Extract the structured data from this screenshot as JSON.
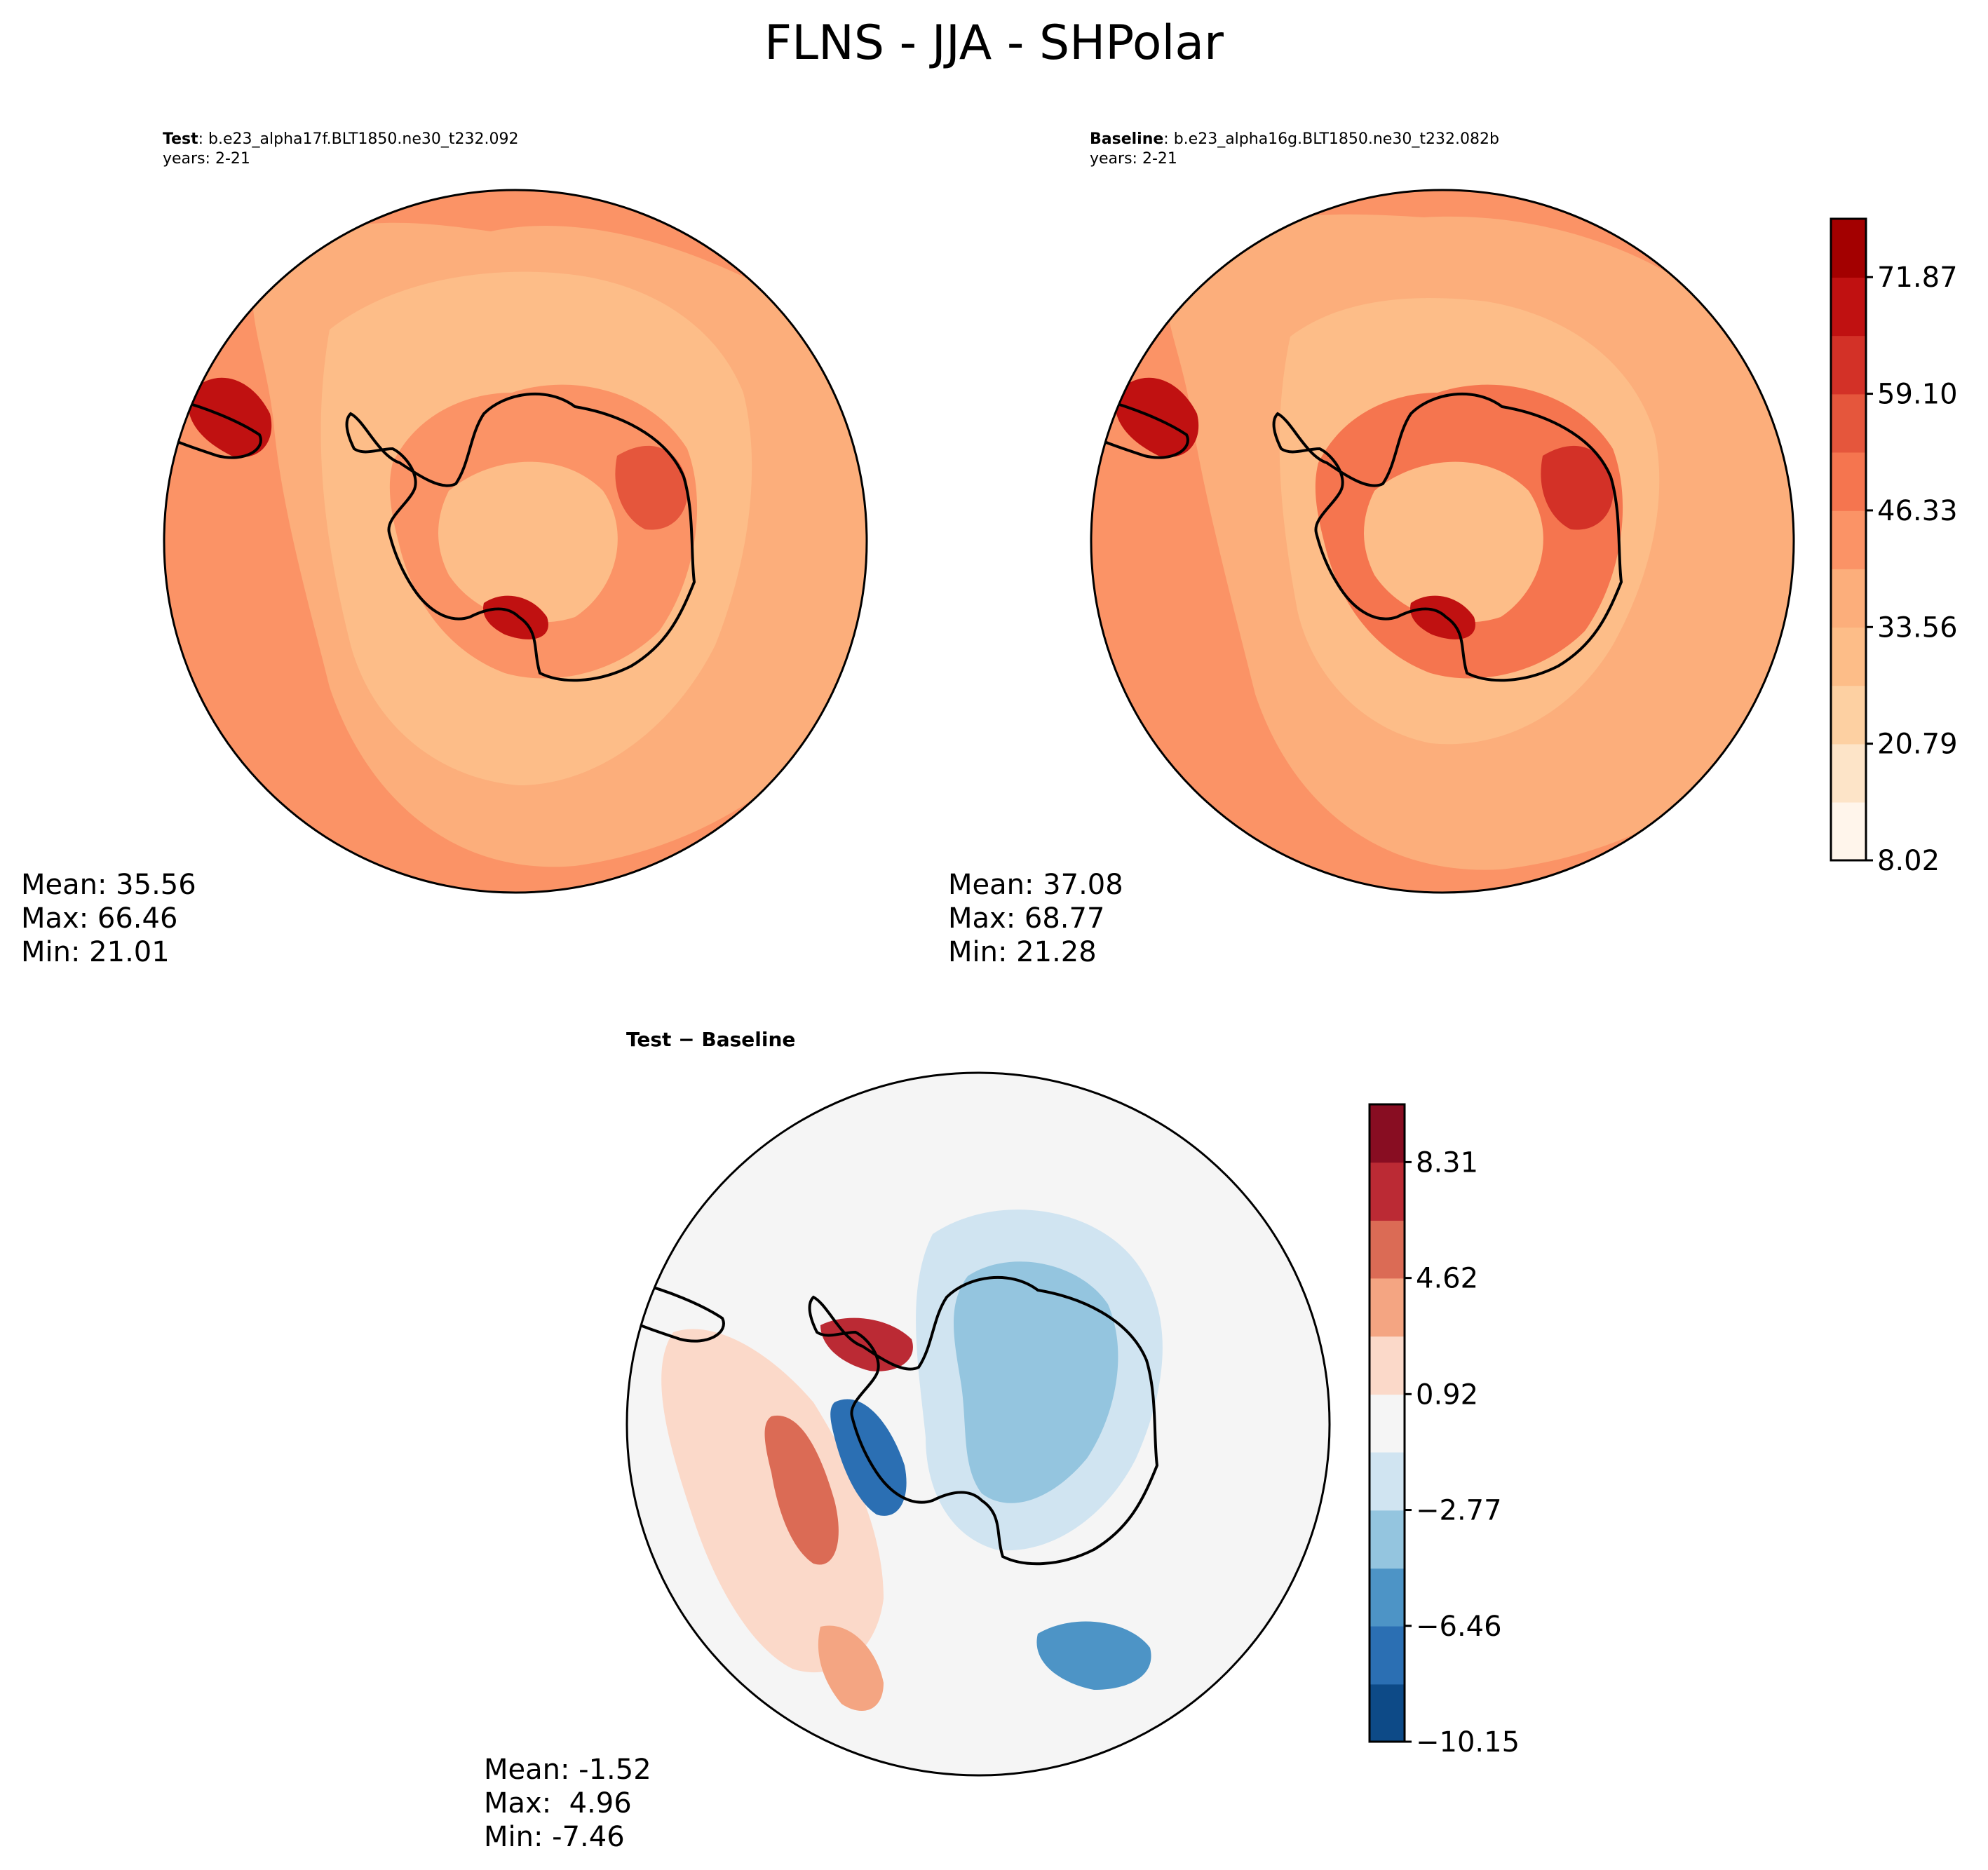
{
  "figure": {
    "title": "FLNS - JJA - SHPolar"
  },
  "panels": [
    {
      "id": "test",
      "label": "Test",
      "case": ": b.e23_alpha17f.BLT1850.ne30_t232.092",
      "years": "years: 2-21",
      "stats": {
        "mean": "Mean: 35.56",
        "max": "Max: 66.46",
        "min": "Min: 21.01"
      }
    },
    {
      "id": "baseline",
      "label": "Baseline",
      "case": ": b.e23_alpha16g.BLT1850.ne30_t232.082b",
      "years": "years: 2-21",
      "stats": {
        "mean": "Mean: 37.08",
        "max": "Max: 68.77",
        "min": "Min: 21.28"
      }
    },
    {
      "id": "diff",
      "label": "Test − Baseline",
      "stats": {
        "mean": "Mean: -1.52",
        "max": "Max:  4.96",
        "min": "Min: -7.46"
      }
    }
  ],
  "chart_data": [
    {
      "type": "heatmap",
      "title": "Test",
      "projection": "south polar stereographic",
      "colormap": "OrRd",
      "colorbar": {
        "ticks": [
          8.02,
          20.79,
          33.56,
          46.33,
          59.1,
          71.87
        ],
        "tick_labels": [
          "8.02",
          "20.79",
          "33.56",
          "46.33",
          "59.10",
          "71.87"
        ],
        "levels": [
          8.02,
          14.41,
          20.79,
          27.18,
          33.56,
          39.95,
          46.33,
          52.72,
          59.1,
          65.49,
          71.87,
          78.26
        ],
        "colors": [
          "#fff5eb",
          "#fde4c8",
          "#fdd0a2",
          "#fdbd88",
          "#fcae7b",
          "#fb9366",
          "#f5754f",
          "#e5563c",
          "#d33127",
          "#c01111",
          "#a30000",
          "#800000"
        ]
      },
      "mean": 35.56,
      "max": 66.46,
      "min": 21.01
    },
    {
      "type": "heatmap",
      "title": "Baseline",
      "projection": "south polar stereographic",
      "colormap": "OrRd",
      "colorbar": "shared with Test",
      "mean": 37.08,
      "max": 68.77,
      "min": 21.28
    },
    {
      "type": "heatmap",
      "title": "Test − Baseline",
      "projection": "south polar stereographic",
      "colormap": "RdBu_r",
      "colorbar": {
        "ticks": [
          -10.15,
          -6.46,
          -2.77,
          0.92,
          4.62,
          8.31
        ],
        "tick_labels": [
          "−10.15",
          "−6.46",
          "−2.77",
          "0.92",
          "4.62",
          "8.31"
        ],
        "levels": [
          -10.15,
          -8.31,
          -6.46,
          -4.62,
          -2.77,
          -0.92,
          0.92,
          2.77,
          4.62,
          6.46,
          8.31,
          10.15
        ],
        "colors": [
          "#0d4a87",
          "#2b6fb3",
          "#4d94c6",
          "#94c5df",
          "#d0e4f1",
          "#f5f5f5",
          "#fbd9c9",
          "#f4a582",
          "#db6b55",
          "#bb2a34",
          "#880d22"
        ]
      },
      "mean": -1.52,
      "max": 4.96,
      "min": -7.46
    }
  ]
}
